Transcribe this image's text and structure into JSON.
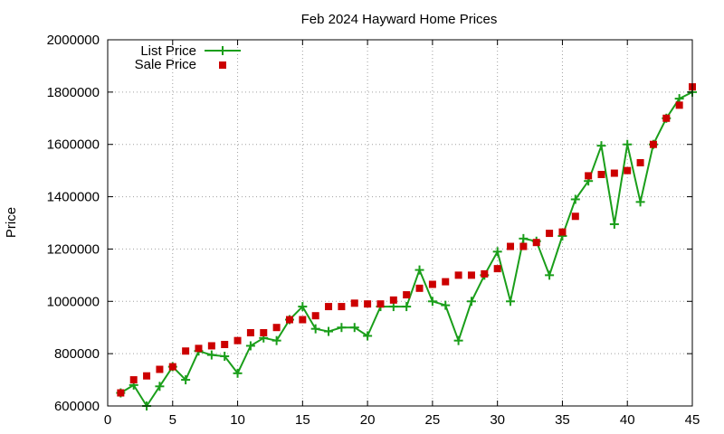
{
  "chart_data": {
    "type": "line",
    "title": "Feb 2024 Hayward Home Prices",
    "xlabel": "",
    "ylabel": "Price",
    "xlim": [
      0,
      45
    ],
    "ylim": [
      600000,
      2000000
    ],
    "x_ticks": [
      0,
      5,
      10,
      15,
      20,
      25,
      30,
      35,
      40,
      45
    ],
    "y_ticks": [
      600000,
      800000,
      1000000,
      1200000,
      1400000,
      1600000,
      1800000,
      2000000
    ],
    "grid": true,
    "legend_position": "top-left",
    "series": [
      {
        "name": "List Price",
        "style": "line-with-plus-markers",
        "color": "#1a9e1a",
        "x": [
          1,
          2,
          3,
          4,
          5,
          6,
          7,
          8,
          9,
          10,
          11,
          12,
          13,
          14,
          15,
          16,
          17,
          18,
          19,
          20,
          21,
          22,
          23,
          24,
          25,
          26,
          27,
          28,
          29,
          30,
          31,
          32,
          33,
          34,
          35,
          36,
          37,
          38,
          39,
          40,
          41,
          42,
          43,
          44,
          45
        ],
        "values": [
          650000,
          680000,
          600000,
          675000,
          750000,
          700000,
          810000,
          795000,
          790000,
          725000,
          830000,
          860000,
          850000,
          930000,
          980000,
          895000,
          885000,
          900000,
          900000,
          868000,
          980000,
          980000,
          980000,
          1120000,
          1000000,
          985000,
          850000,
          1000000,
          1100000,
          1190000,
          1000000,
          1240000,
          1230000,
          1100000,
          1250000,
          1390000,
          1460000,
          1595000,
          1295000,
          1600000,
          1380000,
          1600000,
          1700000,
          1775000,
          1800000
        ]
      },
      {
        "name": "Sale Price",
        "style": "square-markers",
        "color": "#cc0000",
        "x": [
          1,
          2,
          3,
          4,
          5,
          6,
          7,
          8,
          9,
          10,
          11,
          12,
          13,
          14,
          15,
          16,
          17,
          18,
          19,
          20,
          21,
          22,
          23,
          24,
          25,
          26,
          27,
          28,
          29,
          30,
          31,
          32,
          33,
          34,
          35,
          36,
          37,
          38,
          39,
          40,
          41,
          42,
          43,
          44,
          45
        ],
        "values": [
          650000,
          700000,
          715000,
          740000,
          750000,
          810000,
          820000,
          830000,
          835000,
          850000,
          880000,
          880000,
          900000,
          930000,
          930000,
          945000,
          980000,
          980000,
          993000,
          990000,
          990000,
          1005000,
          1025000,
          1050000,
          1065000,
          1075000,
          1100000,
          1100000,
          1105000,
          1125000,
          1210000,
          1210000,
          1225000,
          1260000,
          1265000,
          1325000,
          1480000,
          1485000,
          1490000,
          1500000,
          1530000,
          1600000,
          1700000,
          1750000,
          1820000
        ]
      }
    ]
  }
}
